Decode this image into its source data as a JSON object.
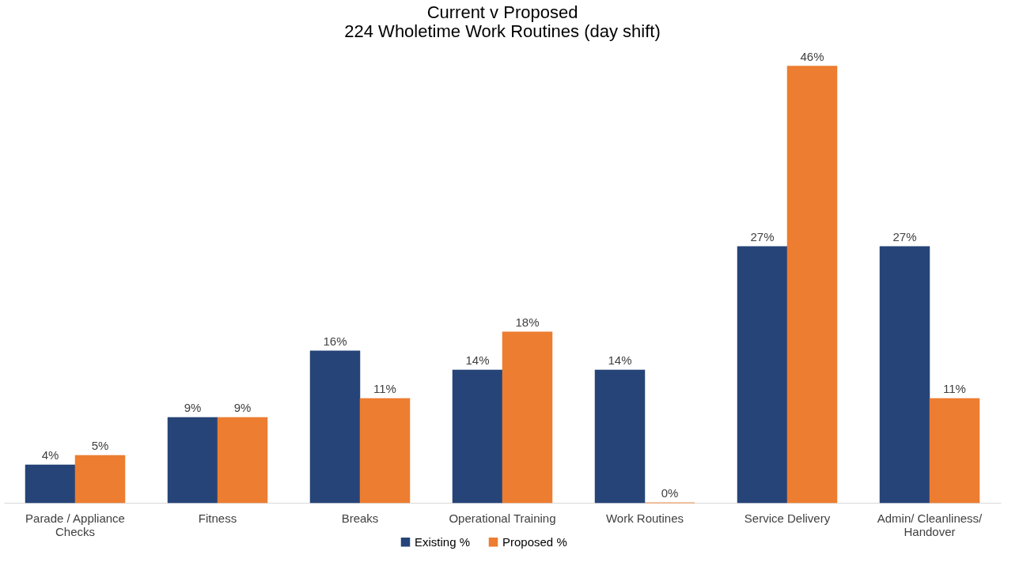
{
  "chart_data": {
    "type": "bar",
    "title": [
      "Current v Proposed",
      "224 Wholetime Work Routines (day shift)"
    ],
    "categories": [
      "Parade / Appliance Checks",
      "Fitness",
      "Breaks",
      "Operational Training",
      "Work Routines",
      "Service Delivery",
      "Admin/ Cleanliness/ Handover"
    ],
    "series": [
      {
        "name": "Existing %",
        "color": "#264478",
        "values": [
          4,
          9,
          16,
          14,
          14,
          27,
          27
        ],
        "value_labels": [
          "4%",
          "9%",
          "16%",
          "14%",
          "14%",
          "27%",
          "27%"
        ]
      },
      {
        "name": "Proposed %",
        "color": "#ed7d31",
        "values": [
          5,
          9,
          11,
          18,
          0,
          46,
          11
        ],
        "value_labels": [
          "5%",
          "9%",
          "11%",
          "18%",
          "0%",
          "46%",
          "11%"
        ]
      }
    ],
    "legend": "bottom",
    "grid": false
  }
}
